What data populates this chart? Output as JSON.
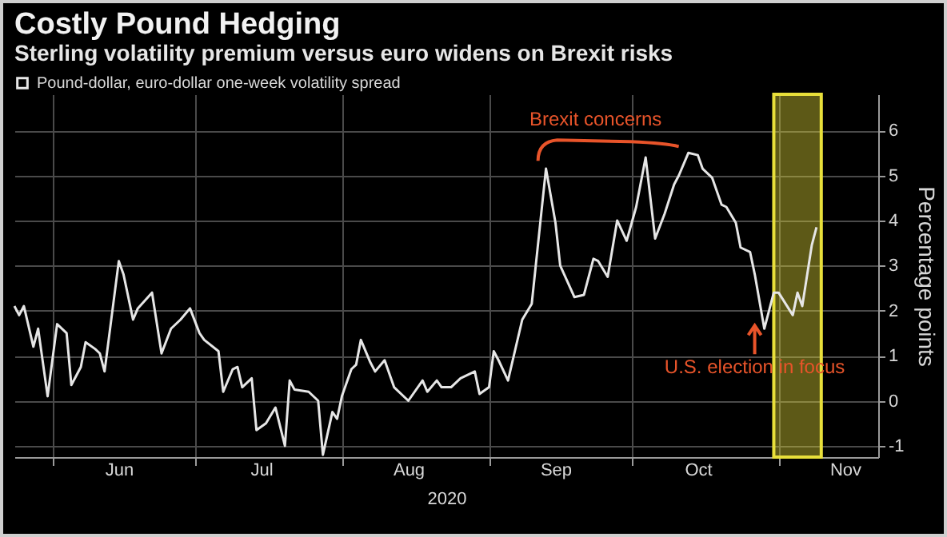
{
  "chart_data": {
    "type": "line",
    "title": "Costly Pound Hedging",
    "subtitle": "Sterling volatility premium versus euro widens on Brexit risks",
    "xlabel": "2020",
    "ylabel": "Percentage points",
    "x": [
      "2020-05-24",
      "2020-05-25",
      "2020-05-26",
      "2020-05-28",
      "2020-05-29",
      "2020-05-31",
      "2020-06-02",
      "2020-06-04",
      "2020-06-05",
      "2020-06-07",
      "2020-06-08",
      "2020-06-10",
      "2020-06-11",
      "2020-06-12",
      "2020-06-15",
      "2020-06-16",
      "2020-06-18",
      "2020-06-19",
      "2020-06-22",
      "2020-06-24",
      "2020-06-26",
      "2020-06-28",
      "2020-06-30",
      "2020-07-02",
      "2020-07-03",
      "2020-07-06",
      "2020-07-07",
      "2020-07-09",
      "2020-07-10",
      "2020-07-11",
      "2020-07-13",
      "2020-07-14",
      "2020-07-16",
      "2020-07-18",
      "2020-07-20",
      "2020-07-21",
      "2020-07-22",
      "2020-07-25",
      "2020-07-27",
      "2020-07-28",
      "2020-07-30",
      "2020-07-31",
      "2020-08-01",
      "2020-08-03",
      "2020-08-04",
      "2020-08-05",
      "2020-08-07",
      "2020-08-08",
      "2020-08-10",
      "2020-08-12",
      "2020-08-15",
      "2020-08-18",
      "2020-08-19",
      "2020-08-21",
      "2020-08-22",
      "2020-08-24",
      "2020-08-26",
      "2020-08-29",
      "2020-08-30",
      "2020-09-01",
      "2020-09-02",
      "2020-09-03",
      "2020-09-05",
      "2020-09-08",
      "2020-09-10",
      "2020-09-12",
      "2020-09-13",
      "2020-09-15",
      "2020-09-16",
      "2020-09-19",
      "2020-09-21",
      "2020-09-23",
      "2020-09-24",
      "2020-09-26",
      "2020-09-28",
      "2020-09-30",
      "2020-10-02",
      "2020-10-04",
      "2020-10-06",
      "2020-10-08",
      "2020-10-10",
      "2020-10-11",
      "2020-10-13",
      "2020-10-15",
      "2020-10-16",
      "2020-10-18",
      "2020-10-20",
      "2020-10-21",
      "2020-10-23",
      "2020-10-24",
      "2020-10-26",
      "2020-10-27",
      "2020-10-29",
      "2020-10-31",
      "2020-11-01",
      "2020-11-04",
      "2020-11-05",
      "2020-11-06",
      "2020-11-08",
      "2020-11-09"
    ],
    "series": [
      {
        "name": "Pound-dollar, euro-dollar one-week volatility spread",
        "color": "#e6e6e6",
        "values": [
          2.1,
          1.9,
          2.1,
          1.2,
          1.6,
          0.1,
          1.7,
          1.5,
          0.35,
          0.75,
          1.3,
          1.15,
          1.05,
          0.65,
          3.1,
          2.8,
          1.8,
          2.05,
          2.4,
          1.05,
          1.6,
          1.8,
          2.05,
          1.5,
          1.35,
          1.1,
          0.2,
          0.7,
          0.75,
          0.3,
          0.5,
          -0.65,
          -0.5,
          -0.15,
          -1.0,
          0.45,
          0.25,
          0.2,
          0.0,
          -1.2,
          -0.25,
          -0.4,
          0.1,
          0.7,
          0.8,
          1.35,
          0.85,
          0.65,
          0.9,
          0.3,
          0.0,
          0.45,
          0.2,
          0.45,
          0.3,
          0.3,
          0.5,
          0.65,
          0.15,
          0.3,
          1.1,
          0.9,
          0.45,
          1.8,
          2.15,
          4.15,
          5.15,
          3.95,
          3.0,
          2.3,
          2.35,
          3.15,
          3.1,
          2.75,
          4.0,
          3.55,
          4.3,
          5.4,
          3.6,
          4.15,
          4.8,
          5.0,
          5.5,
          5.45,
          5.15,
          4.95,
          4.35,
          4.3,
          3.95,
          3.4,
          3.3,
          2.8,
          1.6,
          2.4,
          2.4,
          1.9,
          2.4,
          2.1,
          3.45,
          3.85
        ]
      }
    ],
    "xlim": [
      "2020-05-24",
      "2020-11-22"
    ],
    "xticks": [
      {
        "value": "2020-06-01",
        "label": null
      },
      {
        "value": "2020-06-15",
        "label": "Jun"
      },
      {
        "value": "2020-07-01",
        "label": null
      },
      {
        "value": "2020-07-15",
        "label": "Jul"
      },
      {
        "value": "2020-08-01",
        "label": null
      },
      {
        "value": "2020-08-15",
        "label": "Aug"
      },
      {
        "value": "2020-09-01",
        "label": null
      },
      {
        "value": "2020-09-15",
        "label": "Sep"
      },
      {
        "value": "2020-10-01",
        "label": null
      },
      {
        "value": "2020-10-15",
        "label": "Oct"
      },
      {
        "value": "2020-11-01",
        "label": null
      },
      {
        "value": "2020-11-15",
        "label": "Nov"
      }
    ],
    "ylim": [
      -1.25,
      6.8
    ],
    "yticks": [
      -1,
      0,
      1,
      2,
      3,
      4,
      5,
      6
    ],
    "grid": true,
    "legend": "top left",
    "marker": "none",
    "line_style": "solid",
    "bands": [
      {
        "axis": "x",
        "from": "2020-10-31",
        "to": "2020-11-10",
        "color": "#e8df3a"
      }
    ],
    "annotations": [
      {
        "text": "Brexit concerns",
        "x": "2020-10-13",
        "y": 5.5
      },
      {
        "text": "U.S. election in focus",
        "x": "2020-10-29",
        "y": 1.6
      }
    ]
  }
}
